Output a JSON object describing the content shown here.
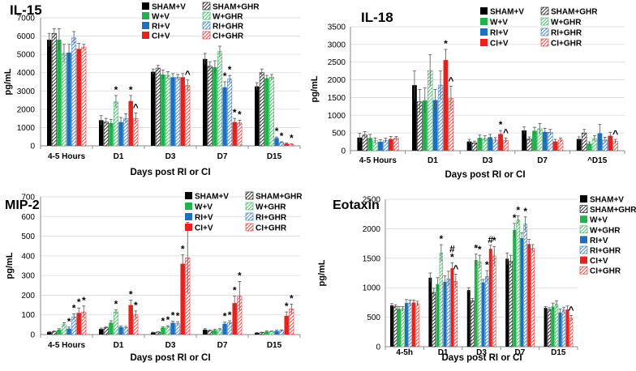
{
  "colors": {
    "sham": "#000000",
    "w": "#22b14c",
    "ri": "#1f6fc0",
    "ci": "#e8211c",
    "axis": "#888888",
    "grid": "#d9d9d9",
    "error": "#555555"
  },
  "chart_data": [
    {
      "type": "bar",
      "title": "IL-15",
      "xlabel": "Days post RI or CI",
      "ylabel": "pg/mL",
      "ylim": [
        0,
        7000
      ],
      "yticks": [
        0,
        1000,
        2000,
        3000,
        4000,
        5000,
        6000,
        7000
      ],
      "ytick_labels": [
        "0",
        "1000",
        "2000",
        "3000",
        "4000",
        "5000",
        "6000",
        "7000"
      ],
      "categories": [
        "4-5 Hours",
        "D1",
        "D3",
        "D7",
        "D15"
      ],
      "legend": [
        "SHAM+V",
        "SHAM+GHR",
        "W+V",
        "W+GHR",
        "RI+V",
        "RI+GHR",
        "CI+V",
        "CI+GHR"
      ],
      "series": [
        {
          "name": "SHAM+V",
          "values": [
            5800,
            1400,
            4050,
            4750,
            3250
          ],
          "errors": [
            350,
            250,
            150,
            300,
            200
          ]
        },
        {
          "name": "SHAM+GHR",
          "values": [
            6150,
            1300,
            4250,
            4350,
            4000
          ],
          "errors": [
            250,
            200,
            150,
            250,
            200
          ]
        },
        {
          "name": "W+V",
          "values": [
            5800,
            1250,
            3900,
            4300,
            3700
          ],
          "errors": [
            600,
            200,
            250,
            350,
            150
          ]
        },
        {
          "name": "W+GHR",
          "values": [
            5050,
            2400,
            3850,
            5150,
            3750
          ],
          "errors": [
            500,
            350,
            200,
            300,
            150
          ]
        },
        {
          "name": "RI+V",
          "values": [
            5100,
            1300,
            3750,
            3200,
            420
          ],
          "errors": [
            450,
            250,
            200,
            300,
            60
          ]
        },
        {
          "name": "RI+GHR",
          "values": [
            5900,
            1500,
            3750,
            3650,
            180
          ],
          "errors": [
            350,
            250,
            150,
            200,
            40
          ]
        },
        {
          "name": "CI+V",
          "values": [
            5300,
            2450,
            3750,
            1300,
            120
          ],
          "errors": [
            300,
            300,
            200,
            200,
            30
          ]
        },
        {
          "name": "CI+GHR",
          "values": [
            5400,
            1500,
            3300,
            1250,
            80
          ],
          "errors": [
            150,
            300,
            300,
            150,
            20
          ]
        }
      ],
      "annotations": [
        {
          "category": 1,
          "series": 3,
          "text": "*"
        },
        {
          "category": 1,
          "series": 6,
          "text": "*"
        },
        {
          "category": 1,
          "series": 7,
          "text": "^"
        },
        {
          "category": 2,
          "series": 7,
          "text": "^"
        },
        {
          "category": 3,
          "series": 4,
          "text": "*"
        },
        {
          "category": 3,
          "series": 5,
          "text": "*"
        },
        {
          "category": 3,
          "series": 6,
          "text": "*"
        },
        {
          "category": 3,
          "series": 7,
          "text": "*"
        },
        {
          "category": 4,
          "series": 4,
          "text": "*"
        },
        {
          "category": 4,
          "series": 5,
          "text": "*"
        },
        {
          "category": 4,
          "series": 7,
          "text": "*"
        }
      ]
    },
    {
      "type": "bar",
      "title": "IL-18",
      "xlabel": "Days post RI or CI",
      "ylabel": "pg/mL",
      "ylim": [
        0,
        3500
      ],
      "yticks": [
        0,
        500,
        1000,
        1500,
        2000,
        2500,
        3000,
        3500
      ],
      "ytick_labels": [
        "0",
        "500",
        "1000",
        "1500",
        "2000",
        "2500",
        "3000",
        "3500"
      ],
      "categories": [
        "4-5 Hours",
        "D1",
        "D3",
        "D7",
        "^D15"
      ],
      "legend": [
        "SHAM+V",
        "SHAM+GHR",
        "W+V",
        "W+GHR",
        "RI+V",
        "RI+GHR",
        "CI+V",
        "CI+GHR"
      ],
      "series": [
        {
          "name": "SHAM+V",
          "values": [
            370,
            1850,
            260,
            570,
            330
          ],
          "errors": [
            120,
            400,
            60,
            100,
            60
          ]
        },
        {
          "name": "SHAM+GHR",
          "values": [
            440,
            1380,
            220,
            330,
            500
          ],
          "errors": [
            100,
            350,
            50,
            60,
            100
          ]
        },
        {
          "name": "W+V",
          "values": [
            360,
            1420,
            360,
            560,
            200
          ],
          "errors": [
            100,
            350,
            80,
            100,
            50
          ]
        },
        {
          "name": "W+GHR",
          "values": [
            280,
            2260,
            340,
            620,
            340
          ],
          "errors": [
            80,
            450,
            80,
            150,
            80
          ]
        },
        {
          "name": "RI+V",
          "values": [
            250,
            1430,
            380,
            530,
            490
          ],
          "errors": [
            60,
            300,
            80,
            100,
            250
          ]
        },
        {
          "name": "RI+GHR",
          "values": [
            290,
            1850,
            300,
            520,
            300
          ],
          "errors": [
            60,
            400,
            70,
            80,
            80
          ]
        },
        {
          "name": "CI+V",
          "values": [
            330,
            2560,
            470,
            260,
            420
          ],
          "errors": [
            70,
            300,
            100,
            60,
            100
          ]
        },
        {
          "name": "CI+GHR",
          "values": [
            350,
            1470,
            290,
            300,
            260
          ],
          "errors": [
            50,
            350,
            70,
            60,
            60
          ]
        }
      ],
      "annotations": [
        {
          "category": 1,
          "series": 6,
          "text": "*"
        },
        {
          "category": 1,
          "series": 7,
          "text": "^"
        },
        {
          "category": 2,
          "series": 6,
          "text": "*"
        },
        {
          "category": 2,
          "series": 7,
          "text": "^"
        },
        {
          "category": 4,
          "series": 7,
          "text": "^"
        }
      ]
    },
    {
      "type": "bar",
      "title": "MIP-2",
      "xlabel": "Days post RI or CI",
      "ylabel": "pg/mL",
      "ylim": [
        0,
        700
      ],
      "yticks": [
        0,
        100,
        200,
        300,
        400,
        500,
        600,
        700
      ],
      "ytick_labels": [
        "0",
        "100",
        "200",
        "300",
        "400",
        "500",
        "600",
        "700"
      ],
      "categories": [
        "4-5 Hours",
        "D1",
        "D3",
        "D7",
        "D15"
      ],
      "legend": [
        "SHAM+V",
        "SHAM+GHR",
        "W+V",
        "W+GHR",
        "RI+V",
        "RI+GHR",
        "CI+V",
        "CI+GHR"
      ],
      "series": [
        {
          "name": "SHAM+V",
          "values": [
            12,
            28,
            10,
            25,
            8
          ],
          "errors": [
            3,
            5,
            2,
            5,
            2
          ]
        },
        {
          "name": "SHAM+GHR",
          "values": [
            15,
            35,
            12,
            20,
            10
          ],
          "errors": [
            3,
            5,
            2,
            4,
            2
          ]
        },
        {
          "name": "W+V",
          "values": [
            25,
            60,
            35,
            22,
            15
          ],
          "errors": [
            5,
            10,
            5,
            5,
            3
          ]
        },
        {
          "name": "W+GHR",
          "values": [
            50,
            115,
            40,
            25,
            15
          ],
          "errors": [
            10,
            10,
            5,
            5,
            3
          ]
        },
        {
          "name": "RI+V",
          "values": [
            30,
            38,
            60,
            55,
            18
          ],
          "errors": [
            8,
            6,
            8,
            8,
            4
          ]
        },
        {
          "name": "RI+GHR",
          "values": [
            90,
            35,
            55,
            60,
            20
          ],
          "errors": [
            15,
            6,
            10,
            10,
            4
          ]
        },
        {
          "name": "CI+V",
          "values": [
            110,
            150,
            360,
            160,
            95
          ],
          "errors": [
            25,
            25,
            45,
            35,
            20
          ]
        },
        {
          "name": "CI+GHR",
          "values": [
            115,
            100,
            390,
            195,
            130
          ],
          "errors": [
            30,
            20,
            180,
            75,
            25
          ]
        }
      ],
      "annotations": [
        {
          "category": 0,
          "series": 4,
          "text": "*"
        },
        {
          "category": 0,
          "series": 5,
          "text": "*"
        },
        {
          "category": 0,
          "series": 6,
          "text": "*"
        },
        {
          "category": 0,
          "series": 7,
          "text": "*"
        },
        {
          "category": 1,
          "series": 3,
          "text": "*"
        },
        {
          "category": 1,
          "series": 6,
          "text": "*"
        },
        {
          "category": 1,
          "series": 7,
          "text": "*"
        },
        {
          "category": 2,
          "series": 2,
          "text": "*"
        },
        {
          "category": 2,
          "series": 3,
          "text": "*"
        },
        {
          "category": 2,
          "series": 4,
          "text": "*"
        },
        {
          "category": 2,
          "series": 5,
          "text": "*"
        },
        {
          "category": 2,
          "series": 6,
          "text": "*"
        },
        {
          "category": 2,
          "series": 7,
          "text": "*"
        },
        {
          "category": 3,
          "series": 4,
          "text": "*"
        },
        {
          "category": 3,
          "series": 5,
          "text": "*"
        },
        {
          "category": 3,
          "series": 6,
          "text": "*"
        },
        {
          "category": 3,
          "series": 7,
          "text": "*"
        },
        {
          "category": 4,
          "series": 6,
          "text": "*"
        },
        {
          "category": 4,
          "series": 7,
          "text": "*"
        }
      ]
    },
    {
      "type": "bar",
      "title": "Eotaxin",
      "xlabel": "Days post RI or CI",
      "ylabel": "pg/mL",
      "ylim": [
        0,
        2500
      ],
      "yticks": [
        0,
        500,
        1000,
        1500,
        2000,
        2500
      ],
      "ytick_labels": [
        "0",
        "500",
        "1000",
        "1500",
        "2000",
        "2500"
      ],
      "categories": [
        "4-5h",
        "D1",
        "D3",
        "D7",
        "D15"
      ],
      "legend": [
        "SHAM+V",
        "SHAM+GHR",
        "W+V",
        "W+GHR",
        "RI+V",
        "RI+GHR",
        "CI+V",
        "CI+GHR"
      ],
      "series": [
        {
          "name": "SHAM+V",
          "values": [
            700,
            1170,
            960,
            1490,
            660
          ],
          "errors": [
            30,
            80,
            40,
            100,
            20
          ]
        },
        {
          "name": "SHAM+GHR",
          "values": [
            680,
            920,
            780,
            1450,
            630
          ],
          "errors": [
            30,
            70,
            40,
            100,
            30
          ]
        },
        {
          "name": "W+V",
          "values": [
            640,
            1060,
            1470,
            1980,
            680
          ],
          "errors": [
            40,
            110,
            100,
            110,
            60
          ]
        },
        {
          "name": "W+GHR",
          "values": [
            640,
            1590,
            1440,
            2150,
            720
          ],
          "errors": [
            40,
            140,
            110,
            70,
            60
          ]
        },
        {
          "name": "RI+V",
          "values": [
            740,
            1100,
            1090,
            1840,
            580
          ],
          "errors": [
            60,
            100,
            50,
            90,
            60
          ]
        },
        {
          "name": "RI+GHR",
          "values": [
            740,
            1150,
            1190,
            2080,
            620
          ],
          "errors": [
            50,
            130,
            100,
            120,
            50
          ]
        },
        {
          "name": "CI+V",
          "values": [
            750,
            1330,
            1660,
            1740,
            630
          ],
          "errors": [
            40,
            90,
            60,
            80,
            60
          ]
        },
        {
          "name": "CI+GHR",
          "values": [
            730,
            1110,
            1540,
            1670,
            480
          ],
          "errors": [
            40,
            120,
            160,
            60,
            50
          ]
        }
      ],
      "annotations": [
        {
          "category": 1,
          "series": 3,
          "text": "*"
        },
        {
          "category": 1,
          "series": 6,
          "text": "#\n*"
        },
        {
          "category": 1,
          "series": 7,
          "text": "^"
        },
        {
          "category": 2,
          "series": 2,
          "text": "*"
        },
        {
          "category": 2,
          "series": 3,
          "text": "*"
        },
        {
          "category": 2,
          "series": 5,
          "text": "*"
        },
        {
          "category": 2,
          "series": 6,
          "text": "#"
        },
        {
          "category": 2,
          "series": 7,
          "text": "*"
        },
        {
          "category": 3,
          "series": 2,
          "text": "*"
        },
        {
          "category": 3,
          "series": 3,
          "text": "*"
        },
        {
          "category": 3,
          "series": 5,
          "text": "*"
        },
        {
          "category": 4,
          "series": 7,
          "text": "^"
        }
      ]
    }
  ]
}
